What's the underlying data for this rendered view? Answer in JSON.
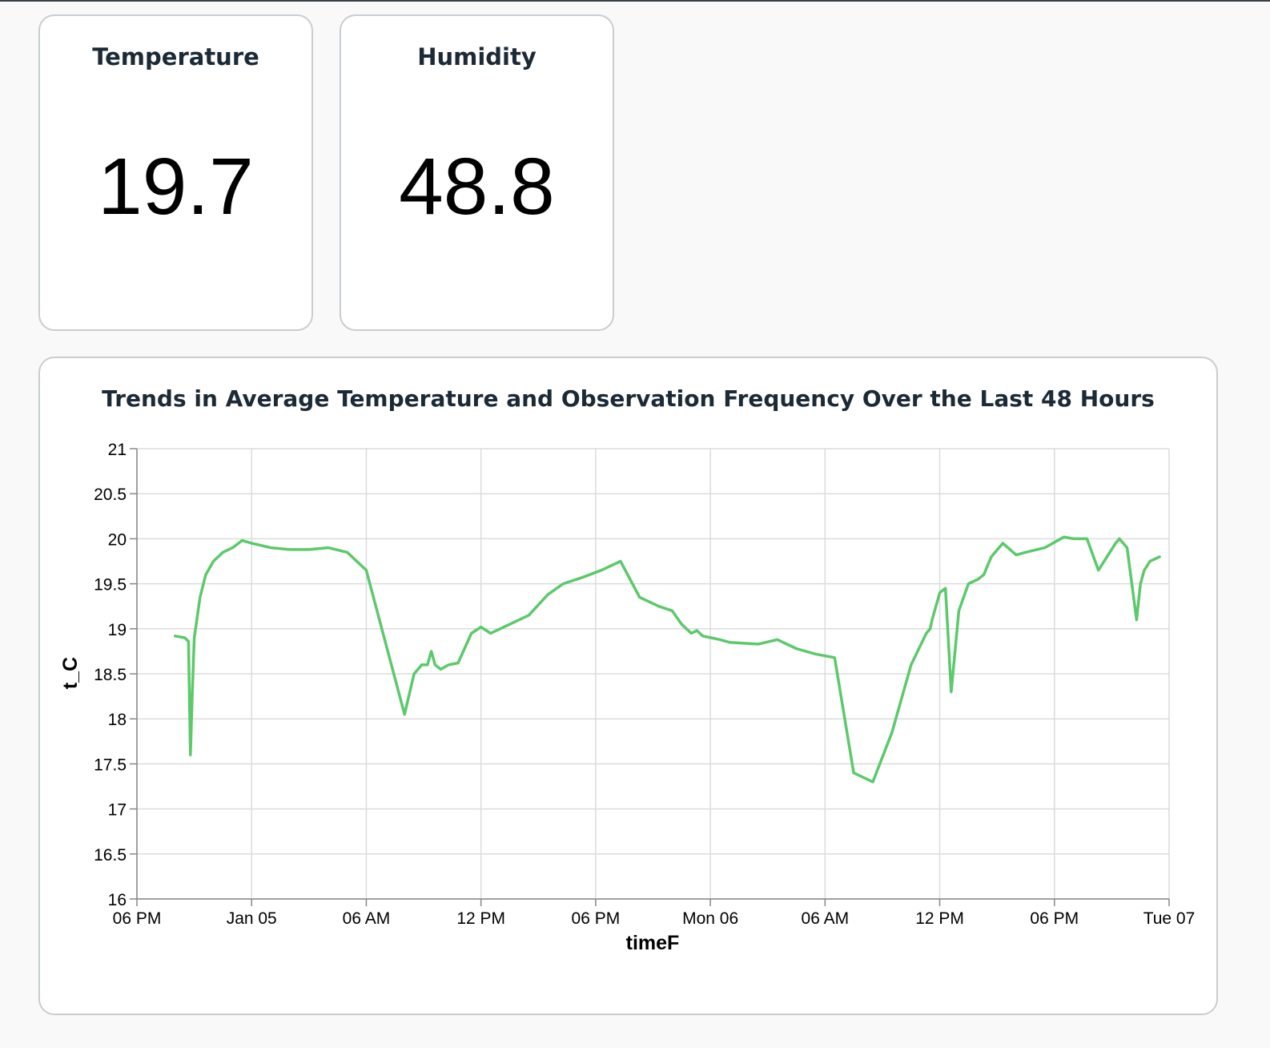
{
  "kpis": [
    {
      "title": "Temperature",
      "value": "19.7"
    },
    {
      "title": "Humidity",
      "value": "48.8"
    }
  ],
  "chart_data": {
    "type": "line",
    "title": "Trends in Average Temperature and Observation Frequency Over the Last 48 Hours",
    "xlabel": "timeF",
    "ylabel": "t_C",
    "ylim": [
      16,
      21
    ],
    "yticks": [
      "21",
      "20.5",
      "20",
      "19.5",
      "19",
      "18.5",
      "18",
      "17.5",
      "17",
      "16.5",
      "16"
    ],
    "xticks": [
      "06 PM",
      "Jan 05",
      "06 AM",
      "12 PM",
      "06 PM",
      "Mon 06",
      "06 AM",
      "12 PM",
      "06 PM",
      "Tue 07"
    ],
    "x_range_hours": [
      0,
      54
    ],
    "x_unit": "hours after 06 PM, Jan 04",
    "grid": true,
    "color": "#5cc96b",
    "series": [
      {
        "x": [
          2.0,
          2.5,
          2.7,
          2.8,
          2.9,
          3.0,
          3.3,
          3.6,
          4.0,
          4.5,
          5.0,
          5.5,
          6.0,
          7.0,
          8.0,
          9.0,
          10.0,
          11.0,
          12.0,
          13.0,
          14.0,
          14.5,
          14.9,
          15.2,
          15.4,
          15.6,
          15.9,
          16.3,
          16.8,
          17.5,
          18.0,
          18.5,
          19.5,
          20.5,
          21.5,
          22.3,
          23.3,
          24.3,
          25.3,
          26.3,
          27.3,
          28.0,
          28.5,
          29.0,
          29.3,
          29.6,
          30.5,
          31.0,
          32.5,
          33.5,
          34.5,
          35.5,
          36.5,
          37.5,
          38.5,
          39.5,
          40.5,
          41.3,
          41.5,
          41.6,
          41.8,
          42.0,
          42.3,
          42.6,
          43.0,
          43.5,
          44.0,
          44.3,
          44.5,
          44.7,
          45.3,
          46.0,
          46.5,
          47.5,
          48.5,
          49.0,
          49.7,
          50.3,
          51.2,
          51.4,
          51.6,
          51.8,
          52.3,
          52.5,
          52.7,
          53.0,
          53.5
        ],
        "y": [
          18.92,
          18.9,
          18.86,
          17.6,
          18.3,
          18.9,
          19.35,
          19.6,
          19.75,
          19.85,
          19.9,
          19.98,
          19.95,
          19.9,
          19.88,
          19.88,
          19.9,
          19.85,
          19.65,
          18.85,
          18.05,
          18.5,
          18.6,
          18.6,
          18.75,
          18.6,
          18.55,
          18.6,
          18.62,
          18.95,
          19.02,
          18.95,
          19.05,
          19.15,
          19.38,
          19.5,
          19.57,
          19.65,
          19.75,
          19.35,
          19.25,
          19.2,
          19.05,
          18.95,
          18.98,
          18.92,
          18.88,
          18.85,
          18.83,
          18.88,
          18.78,
          18.72,
          18.68,
          17.4,
          17.3,
          17.85,
          18.6,
          18.95,
          19.0,
          19.1,
          19.25,
          19.4,
          19.45,
          18.3,
          19.2,
          19.5,
          19.55,
          19.6,
          19.7,
          19.8,
          19.95,
          19.82,
          19.85,
          19.9,
          20.02,
          20.0,
          20.0,
          19.65,
          19.95,
          20.0,
          19.95,
          19.9,
          19.1,
          19.5,
          19.65,
          19.75,
          19.8
        ]
      }
    ]
  }
}
